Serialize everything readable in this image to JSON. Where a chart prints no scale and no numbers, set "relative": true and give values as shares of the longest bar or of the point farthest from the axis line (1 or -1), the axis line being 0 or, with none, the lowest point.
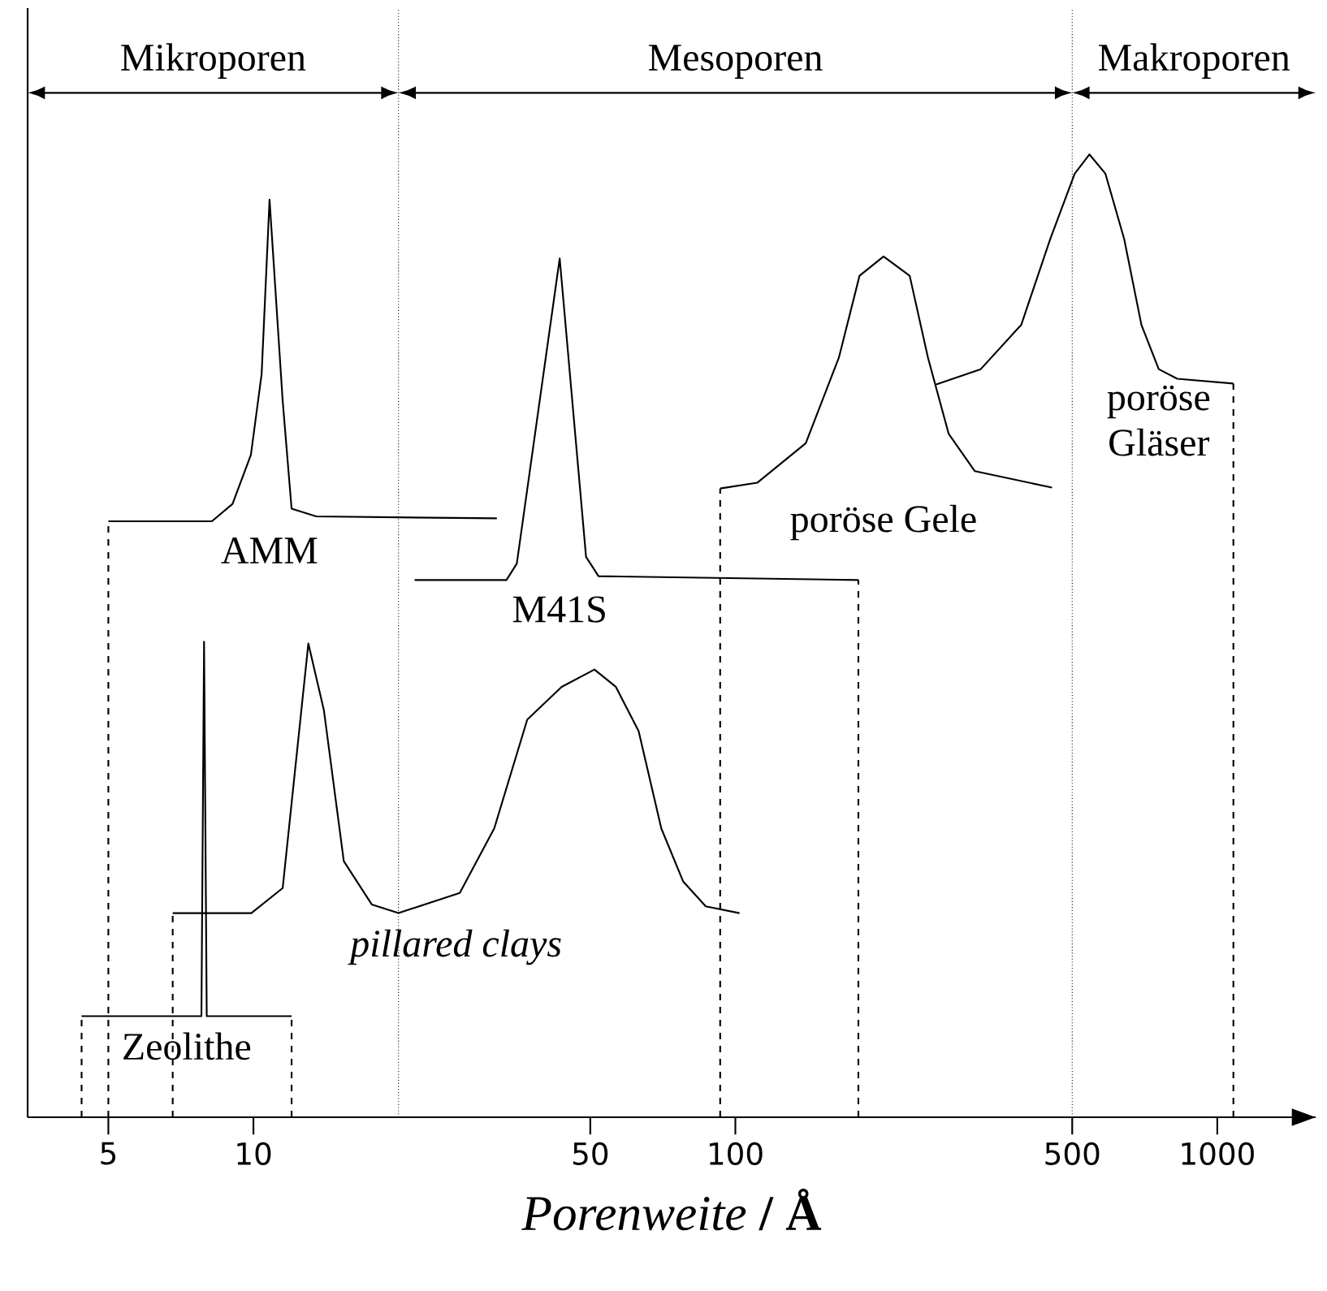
{
  "chart_data": {
    "type": "line",
    "relative": true,
    "xlabel": "*Porenweite* **/ Å**",
    "log": "x",
    "xlim": [
      3.4,
      1600
    ],
    "xticks": [
      5,
      10,
      50,
      100,
      500,
      1000
    ],
    "tick_labels": "x",
    "ref_lines": [
      {
        "axis": "x",
        "value": 20,
        "line_style": "dotted"
      },
      {
        "axis": "x",
        "value": 500,
        "line_style": "dotted"
      }
    ],
    "annotations": [
      "Mikroporen",
      "Mesoporen",
      "Makroporen"
    ],
    "series": [
      {
        "name": "Zeolithe",
        "color": "#000000",
        "x": [
          4.4,
          7.8,
          7.9,
          8.0,
          12
        ],
        "values": [
          0.105,
          0.105,
          0.494,
          0.105,
          0.105
        ]
      },
      {
        "name": "*pillared clays*",
        "color": "#000000",
        "x": [
          6.8,
          9.9,
          11.5,
          13,
          14,
          15.4,
          17.6,
          20,
          26.8,
          31.6,
          37,
          43.6,
          51,
          56.5,
          63,
          70.2,
          77.9,
          86.8,
          102
        ],
        "values": [
          0.212,
          0.212,
          0.238,
          0.492,
          0.423,
          0.266,
          0.221,
          0.212,
          0.233,
          0.3,
          0.413,
          0.447,
          0.465,
          0.447,
          0.401,
          0.3,
          0.245,
          0.219,
          0.212
        ]
      },
      {
        "name": "AMM",
        "color": "#000000",
        "x": [
          5,
          8.2,
          9.05,
          9.88,
          10.4,
          10.8,
          11.5,
          12,
          13.5,
          32
        ],
        "values": [
          0.619,
          0.619,
          0.637,
          0.688,
          0.772,
          0.953,
          0.744,
          0.632,
          0.624,
          0.622
        ]
      },
      {
        "name": "M41S",
        "color": "#000000",
        "x": [
          21.6,
          33.5,
          35.2,
          43.2,
          49,
          52,
          180
        ],
        "values": [
          0.558,
          0.558,
          0.575,
          0.892,
          0.582,
          0.562,
          0.558
        ]
      },
      {
        "name": "poröse Gele",
        "color": "#000000",
        "x": [
          93,
          111,
          140,
          164,
          181,
          203,
          230,
          251,
          277,
          314,
          454
        ],
        "values": [
          0.653,
          0.659,
          0.7,
          0.789,
          0.874,
          0.894,
          0.874,
          0.789,
          0.71,
          0.671,
          0.654
        ]
      },
      {
        "name": "poröse Gläser",
        "color": "#000000",
        "x": [
          261,
          323,
          392,
          450,
          506,
          543,
          586,
          641,
          696,
          756,
          826,
          1080
        ],
        "values": [
          0.761,
          0.777,
          0.823,
          0.912,
          0.98,
          1.0,
          0.98,
          0.912,
          0.823,
          0.777,
          0.767,
          0.762
        ]
      },
      {
        "color": "#000000",
        "line_style": "dashed",
        "x": [
          4.4,
          4.4
        ],
        "values": [
          0,
          0.105
        ]
      },
      {
        "color": "#000000",
        "line_style": "dashed",
        "x": [
          12,
          12
        ],
        "values": [
          0,
          0.105
        ]
      },
      {
        "color": "#000000",
        "line_style": "dashed",
        "x": [
          6.8,
          6.8
        ],
        "values": [
          0,
          0.212
        ]
      },
      {
        "color": "#000000",
        "line_style": "dashed",
        "x": [
          5,
          5
        ],
        "values": [
          0,
          0.619
        ]
      },
      {
        "color": "#000000",
        "line_style": "dashed",
        "x": [
          93,
          93
        ],
        "values": [
          0,
          0.653
        ]
      },
      {
        "color": "#000000",
        "line_style": "dashed",
        "x": [
          180,
          180
        ],
        "values": [
          0,
          0.558
        ]
      },
      {
        "color": "#000000",
        "line_style": "dashed",
        "x": [
          1080,
          1080
        ],
        "values": [
          0,
          0.762
        ]
      }
    ]
  }
}
